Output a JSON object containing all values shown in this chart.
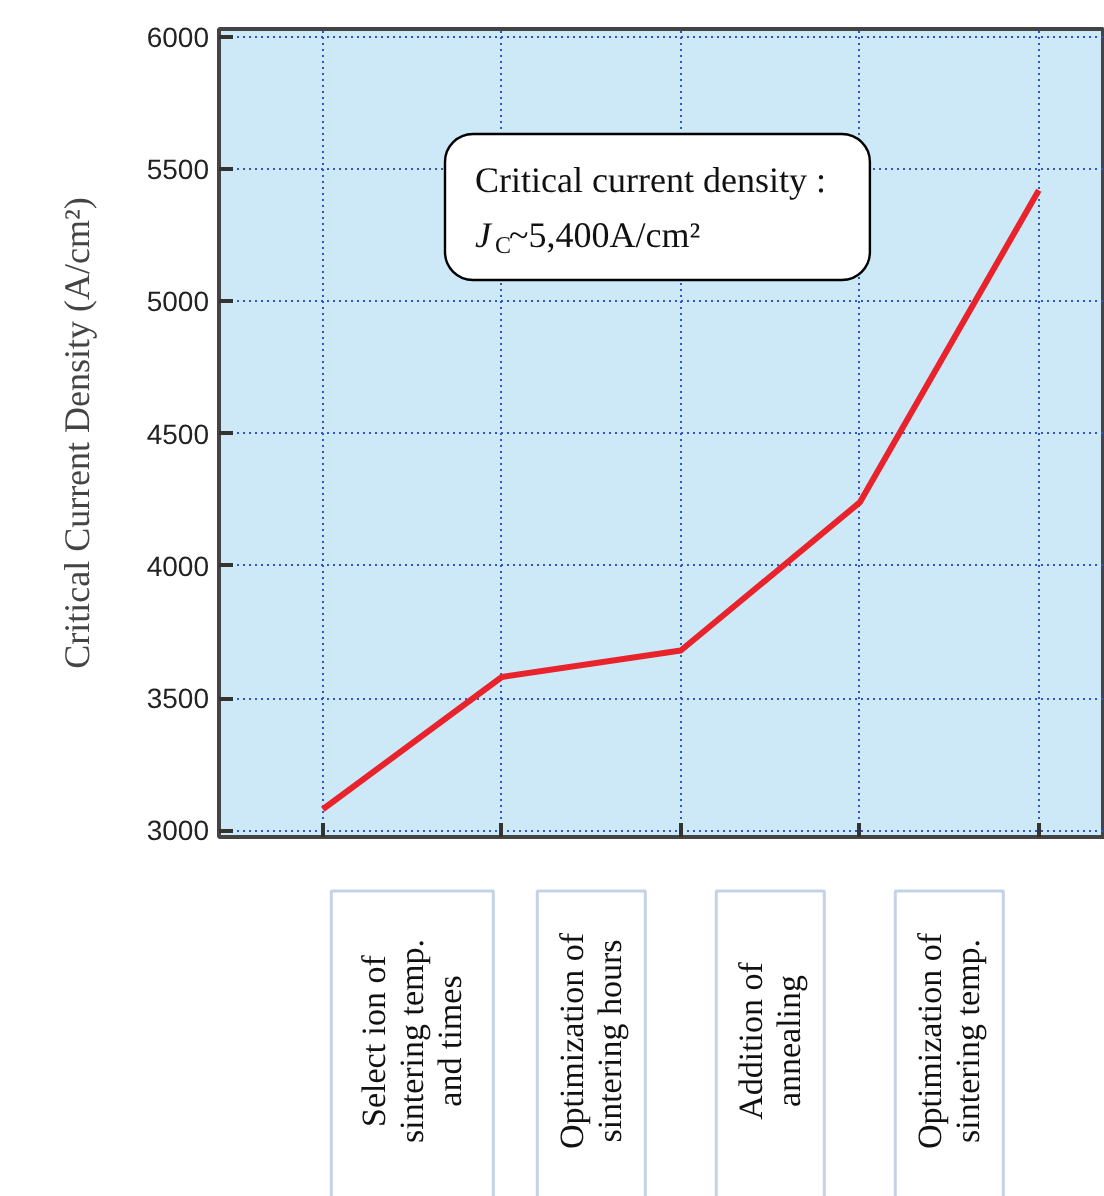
{
  "chart_data": {
    "type": "line",
    "ylabel": "Critical Current Density (A/cm²)",
    "categories": [
      null,
      null,
      null,
      null,
      null
    ],
    "ylim": [
      2975,
      6030
    ],
    "yticks": [
      3000,
      3500,
      4000,
      4500,
      5000,
      5500,
      6000
    ],
    "series": [
      {
        "color": "#e8232b",
        "values": [
          3080,
          3580,
          3680,
          4240,
          5420
        ]
      }
    ],
    "grid": true,
    "tick_labels": "y",
    "line_style": "solid",
    "annotations": [
      "Critical current density :\nJ$_{C}$~5,400A/cm²",
      "Select ion of\nsintering temp.\nand times",
      "Optimization of\nsintering hours",
      "Addition of\nannealing",
      "Optimization of\nsintering temp."
    ]
  }
}
